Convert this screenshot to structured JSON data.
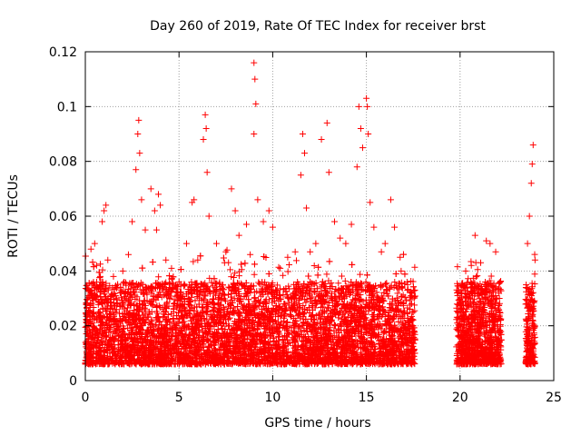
{
  "chart_data": {
    "type": "scatter",
    "title": "Day 260 of 2019, Rate Of TEC Index for receiver brst",
    "xlabel": "GPS time / hours",
    "ylabel": "ROTI / TECUs",
    "xlim": [
      0,
      25
    ],
    "ylim": [
      0,
      0.12
    ],
    "x_ticks": [
      0,
      5,
      10,
      15,
      20,
      25
    ],
    "y_ticks": [
      0,
      0.02,
      0.04,
      0.06,
      0.08,
      0.1,
      0.12
    ],
    "x_tick_labels": [
      "0",
      "5",
      "10",
      "15",
      "20",
      "25"
    ],
    "y_tick_labels": [
      "0",
      "0.02",
      "0.04",
      "0.06",
      "0.08",
      "0.1",
      "0.12"
    ],
    "grid": true,
    "marker": "plus",
    "color": "#ff0000",
    "coverage_hours": [
      [
        0,
        17.6
      ],
      [
        19.8,
        22.2
      ],
      [
        23.5,
        24.0
      ]
    ],
    "series": [
      {
        "points": [
          [
            0.1,
            0.018
          ],
          [
            0.2,
            0.031
          ],
          [
            0.3,
            0.048
          ],
          [
            0.5,
            0.05
          ],
          [
            0.6,
            0.042
          ],
          [
            0.8,
            0.038
          ],
          [
            0.9,
            0.058
          ],
          [
            1.0,
            0.062
          ],
          [
            1.1,
            0.064
          ],
          [
            1.2,
            0.044
          ],
          [
            1.5,
            0.038
          ],
          [
            2.0,
            0.04
          ],
          [
            2.3,
            0.046
          ],
          [
            2.5,
            0.058
          ],
          [
            2.7,
            0.077
          ],
          [
            2.8,
            0.09
          ],
          [
            2.85,
            0.095
          ],
          [
            2.9,
            0.083
          ],
          [
            3.0,
            0.066
          ],
          [
            3.2,
            0.055
          ],
          [
            3.5,
            0.07
          ],
          [
            3.7,
            0.062
          ],
          [
            3.8,
            0.055
          ],
          [
            3.9,
            0.068
          ],
          [
            4.0,
            0.064
          ],
          [
            4.3,
            0.044
          ],
          [
            4.6,
            0.041
          ],
          [
            5.0,
            0.036
          ],
          [
            5.4,
            0.05
          ],
          [
            5.7,
            0.065
          ],
          [
            5.8,
            0.066
          ],
          [
            6.0,
            0.044
          ],
          [
            6.3,
            0.088
          ],
          [
            6.4,
            0.097
          ],
          [
            6.45,
            0.092
          ],
          [
            6.5,
            0.076
          ],
          [
            6.6,
            0.06
          ],
          [
            7.0,
            0.05
          ],
          [
            7.5,
            0.047
          ],
          [
            7.8,
            0.07
          ],
          [
            8.0,
            0.062
          ],
          [
            8.2,
            0.053
          ],
          [
            8.6,
            0.057
          ],
          [
            8.8,
            0.046
          ],
          [
            9.0,
            0.116
          ],
          [
            9.05,
            0.11
          ],
          [
            9.1,
            0.101
          ],
          [
            9.0,
            0.09
          ],
          [
            9.2,
            0.066
          ],
          [
            9.5,
            0.058
          ],
          [
            9.8,
            0.062
          ],
          [
            10.0,
            0.056
          ],
          [
            10.4,
            0.041
          ],
          [
            10.8,
            0.045
          ],
          [
            11.2,
            0.047
          ],
          [
            11.5,
            0.075
          ],
          [
            11.6,
            0.09
          ],
          [
            11.7,
            0.083
          ],
          [
            11.8,
            0.063
          ],
          [
            12.0,
            0.047
          ],
          [
            12.3,
            0.05
          ],
          [
            12.6,
            0.088
          ],
          [
            12.9,
            0.094
          ],
          [
            13.0,
            0.076
          ],
          [
            13.3,
            0.058
          ],
          [
            13.6,
            0.052
          ],
          [
            13.9,
            0.05
          ],
          [
            14.2,
            0.057
          ],
          [
            14.5,
            0.078
          ],
          [
            14.6,
            0.1
          ],
          [
            14.7,
            0.092
          ],
          [
            14.8,
            0.085
          ],
          [
            15.0,
            0.103
          ],
          [
            15.05,
            0.1
          ],
          [
            15.1,
            0.09
          ],
          [
            15.2,
            0.065
          ],
          [
            15.4,
            0.056
          ],
          [
            15.8,
            0.047
          ],
          [
            16.0,
            0.05
          ],
          [
            16.3,
            0.066
          ],
          [
            16.5,
            0.056
          ],
          [
            16.8,
            0.045
          ],
          [
            17.2,
            0.035
          ],
          [
            17.5,
            0.025
          ],
          [
            20.0,
            0.028
          ],
          [
            20.3,
            0.04
          ],
          [
            20.6,
            0.042
          ],
          [
            20.8,
            0.053
          ],
          [
            21.1,
            0.043
          ],
          [
            21.4,
            0.051
          ],
          [
            21.6,
            0.05
          ],
          [
            21.9,
            0.047
          ],
          [
            22.1,
            0.03
          ],
          [
            23.6,
            0.05
          ],
          [
            23.7,
            0.06
          ],
          [
            23.8,
            0.072
          ],
          [
            23.85,
            0.079
          ],
          [
            23.9,
            0.086
          ],
          [
            24.0,
            0.044
          ]
        ]
      }
    ]
  }
}
